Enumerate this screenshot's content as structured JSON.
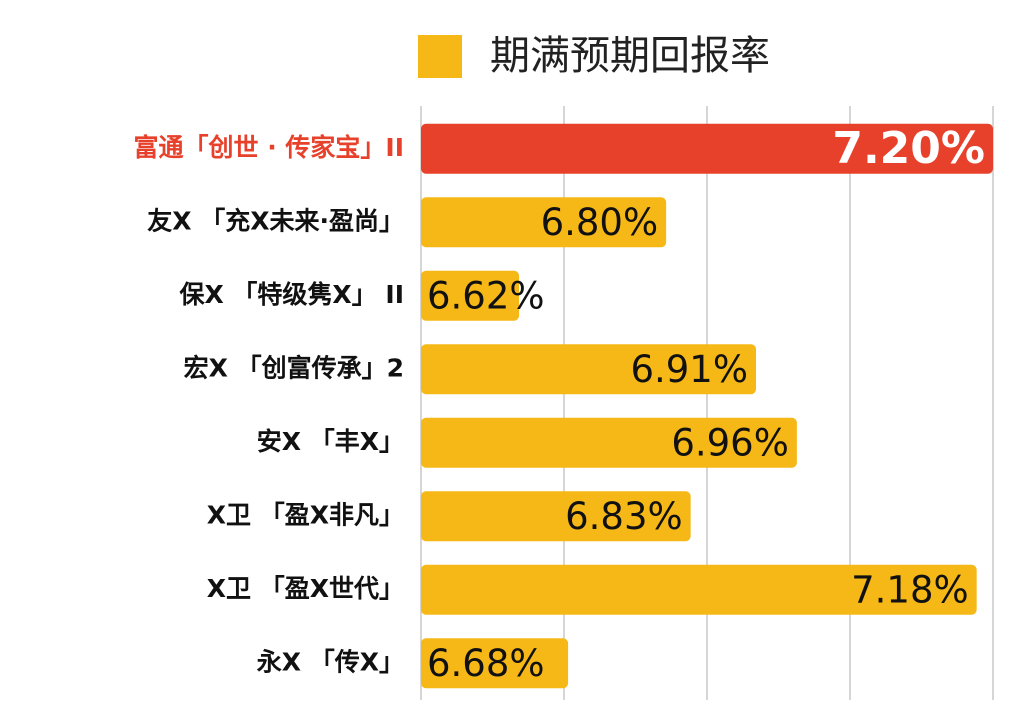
{
  "chart_data": {
    "type": "barh",
    "categories": [
      "富通「创世 · 传家宝」II",
      "友X 「充X未来·盈尚」",
      "保X 「特级隽X」 II",
      "宏X 「创富传承」2",
      "安X 「丰X」",
      "X卫 「盈X非凡」",
      "X卫 「盈X世代」",
      "永X 「传X」"
    ],
    "series": [
      {
        "name": "期满预期回报率",
        "color": "#f6b817",
        "values": [
          7.2,
          6.8,
          6.62,
          6.91,
          6.96,
          6.83,
          7.18,
          6.68
        ],
        "value_labels": [
          "7.20%",
          "6.80%",
          "6.62%",
          "6.91%",
          "6.96%",
          "6.83%",
          "7.18%",
          "6.68%"
        ]
      }
    ],
    "highlight_index": 0,
    "highlight_color": "#e8412b",
    "xlim": [
      6.5,
      7.2
    ],
    "xticks": [
      6.5,
      6.675,
      6.85,
      7.025,
      7.2
    ],
    "grid": true,
    "legend": "top"
  }
}
